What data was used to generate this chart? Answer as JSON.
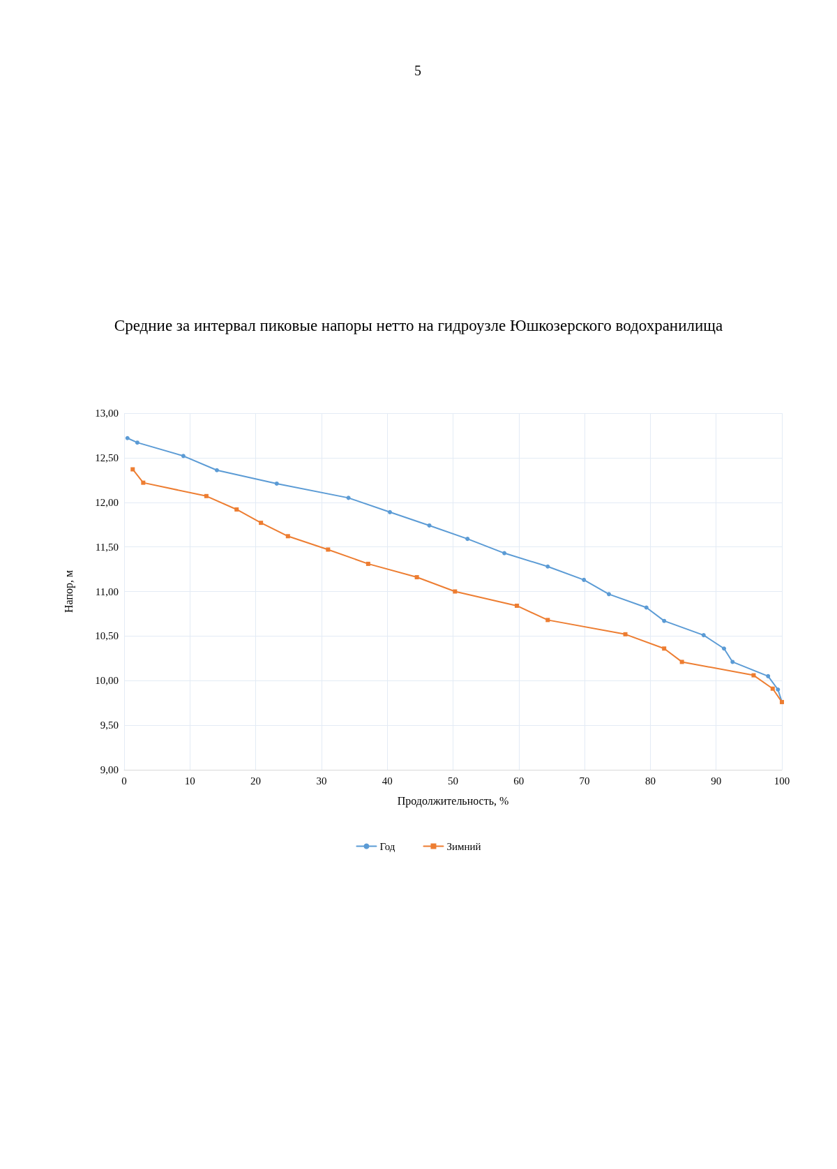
{
  "chart_data": {
    "type": "line",
    "title": "Средние за интервал пиковые напоры нетто на гидроузле Юшкозерского водохранилища",
    "xlabel": "Продолжительность, %",
    "ylabel": "Напор, м",
    "annotations": [
      "5"
    ],
    "xlim": [
      0,
      100
    ],
    "xticks": [
      0,
      10,
      20,
      30,
      40,
      50,
      60,
      70,
      80,
      90,
      100
    ],
    "ylim": [
      9,
      13
    ],
    "yticks": [
      {
        "value": 9,
        "label": "9,00"
      },
      {
        "value": 9.5,
        "label": "9,50"
      },
      {
        "value": 10,
        "label": "10,00"
      },
      {
        "value": 10.5,
        "label": "10,50"
      },
      {
        "value": 11,
        "label": "11,00"
      },
      {
        "value": 11.5,
        "label": "11,50"
      },
      {
        "value": 12,
        "label": "12,00"
      },
      {
        "value": 12.5,
        "label": "12,50"
      },
      {
        "value": 13,
        "label": "13,00"
      }
    ],
    "grid": true,
    "legend": "bottom",
    "line_style": "solid",
    "series": [
      {
        "name": "Год",
        "color": "#5b9bd5",
        "marker": "circle",
        "x": [
          0.5,
          2.0,
          9.0,
          14.1,
          23.2,
          34.1,
          40.4,
          46.4,
          52.2,
          57.8,
          64.4,
          69.9,
          73.7,
          79.4,
          82.1,
          88.1,
          91.2,
          92.5,
          97.9,
          99.4,
          100
        ],
        "values": [
          12.72,
          12.67,
          12.52,
          12.36,
          12.21,
          12.05,
          11.89,
          11.74,
          11.59,
          11.43,
          11.28,
          11.13,
          10.97,
          10.82,
          10.67,
          10.51,
          10.36,
          10.21,
          10.05,
          9.9,
          9.76
        ]
      },
      {
        "name": "Зимний",
        "color": "#ed7d31",
        "marker": "square",
        "x": [
          1.3,
          2.9,
          12.5,
          17.1,
          20.8,
          24.9,
          31.0,
          37.1,
          44.5,
          50.3,
          59.7,
          64.4,
          76.2,
          82.1,
          84.8,
          95.7,
          98.6,
          100
        ],
        "values": [
          12.37,
          12.22,
          12.07,
          11.92,
          11.77,
          11.62,
          11.47,
          11.31,
          11.16,
          11.0,
          10.84,
          10.68,
          10.52,
          10.36,
          10.21,
          10.06,
          9.91,
          9.76
        ]
      }
    ]
  }
}
